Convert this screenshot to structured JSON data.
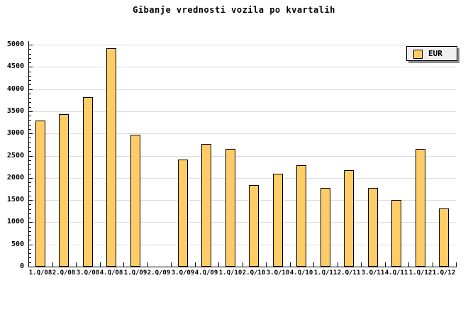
{
  "title": "Gibanje vrednosti vozila po kvartalih",
  "legend": {
    "label": "EUR"
  },
  "colors": {
    "bar_fill": "#ffcc66",
    "bar_border": "#000000",
    "grid": "#dcdcdc",
    "axis": "#000000",
    "legend_bg": "#efefef",
    "legend_shadow": "#8c8c8c",
    "background": "#ffffff"
  },
  "chart_data": {
    "type": "bar",
    "title": "Gibanje vrednosti vozila po kvartalih",
    "series_name": "EUR",
    "categories": [
      "1.Q/08",
      "2.Q/08",
      "3.Q/08",
      "4.Q/08",
      "1.Q/09",
      "2.Q/09",
      "3.Q/09",
      "4.Q/09",
      "1.Q/10",
      "2.Q/10",
      "3.Q/10",
      "4.Q/10",
      "1.Q/11",
      "2.Q/11",
      "3.Q/11",
      "4.Q/11",
      "1.Q/12",
      "1.Q/12"
    ],
    "values": [
      3290,
      3440,
      3820,
      4920,
      2970,
      0,
      2420,
      2770,
      2650,
      1840,
      2100,
      2290,
      1780,
      2170,
      1780,
      1500,
      2650,
      1310
    ],
    "xlabel": "",
    "ylabel": "",
    "ylim": [
      0,
      5000
    ],
    "ytick_step": 500,
    "ytick_minor_step": 100,
    "ytick_labels": [
      "0",
      "500",
      "1000",
      "1500",
      "2000",
      "2500",
      "3000",
      "3500",
      "4000",
      "4500",
      "5000"
    ],
    "grid": "horizontal-major-only",
    "legend_position": "top-right"
  }
}
